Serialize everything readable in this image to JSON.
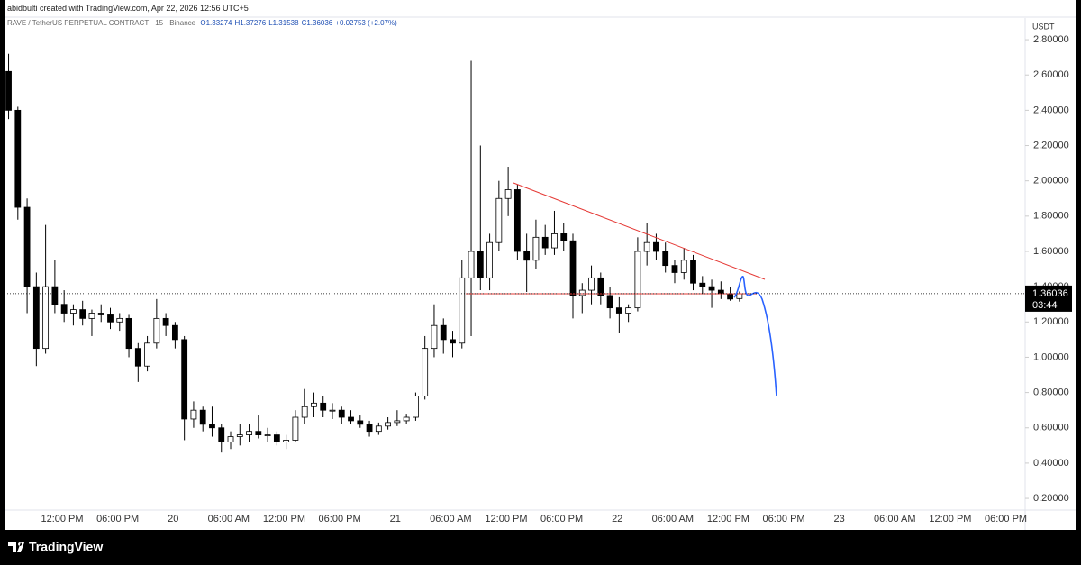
{
  "header": {
    "caption": "abidbulti created with TradingView.com, Apr 22, 2026 12:56 UTC+5",
    "brand": "TradingView"
  },
  "chart_data": {
    "type": "candlestick",
    "title": "RAVE / TetherUS PERPETUAL CONTRACT · 15 · Binance",
    "ohlc_labels": [
      {
        "value": 1.33274,
        "label": "O1.33274"
      },
      {
        "value": 1.37276,
        "label": "H1.37276"
      },
      {
        "value": 1.31538,
        "label": "L1.31538"
      },
      {
        "value": 1.36036,
        "label": "C1.36036"
      }
    ],
    "change_label": {
      "value": 0.02753,
      "label": "+0.02753 (+2.07%)"
    },
    "y_unit": "USDT",
    "open": [
      2.62,
      2.4,
      1.85,
      1.4,
      1.05,
      1.4,
      1.3,
      1.25,
      1.27,
      1.22,
      1.25,
      1.24,
      1.2,
      1.22,
      1.05,
      0.95,
      1.08,
      1.22,
      1.18,
      1.1,
      0.65,
      0.7,
      0.62,
      0.6,
      0.52,
      0.55,
      0.56,
      0.58,
      0.56,
      0.56,
      0.52,
      0.53,
      0.66,
      0.72,
      0.74,
      0.7,
      0.7,
      0.66,
      0.64,
      0.62,
      0.58,
      0.61,
      0.63,
      0.64,
      0.66,
      0.78,
      1.05,
      1.18,
      1.1,
      1.08,
      1.45,
      1.6,
      1.45,
      1.65,
      1.9,
      1.95,
      1.6,
      1.55,
      1.68,
      1.62,
      1.7,
      1.66,
      1.35,
      1.38,
      1.45,
      1.35,
      1.28,
      1.25,
      1.28,
      1.6,
      1.65,
      1.6,
      1.52,
      1.48,
      1.55,
      1.42,
      1.4,
      1.38,
      1.36,
      1.33274
    ],
    "high": [
      2.72,
      2.42,
      1.9,
      1.48,
      1.75,
      1.55,
      1.38,
      1.3,
      1.32,
      1.27,
      1.3,
      1.28,
      1.25,
      1.24,
      1.08,
      1.12,
      1.33,
      1.25,
      1.2,
      1.12,
      0.75,
      0.72,
      0.72,
      0.62,
      0.58,
      0.62,
      0.62,
      0.67,
      0.6,
      0.58,
      0.56,
      0.7,
      0.82,
      0.8,
      0.78,
      0.74,
      0.72,
      0.7,
      0.67,
      0.64,
      0.63,
      0.66,
      0.7,
      0.68,
      0.8,
      1.12,
      1.3,
      1.22,
      1.15,
      1.55,
      2.68,
      2.2,
      1.7,
      2.0,
      2.08,
      1.98,
      1.7,
      1.78,
      1.75,
      1.83,
      1.76,
      1.7,
      1.42,
      1.52,
      1.48,
      1.4,
      1.34,
      1.3,
      1.68,
      1.76,
      1.7,
      1.65,
      1.55,
      1.62,
      1.58,
      1.46,
      1.44,
      1.43,
      1.4,
      1.37276
    ],
    "low": [
      2.35,
      1.78,
      1.25,
      0.95,
      1.02,
      1.25,
      1.2,
      1.18,
      1.18,
      1.12,
      1.2,
      1.16,
      1.15,
      1.0,
      0.86,
      0.92,
      1.05,
      1.12,
      1.05,
      0.53,
      0.6,
      0.58,
      0.55,
      0.46,
      0.48,
      0.5,
      0.52,
      0.54,
      0.52,
      0.5,
      0.48,
      0.52,
      0.62,
      0.66,
      0.66,
      0.65,
      0.62,
      0.62,
      0.6,
      0.55,
      0.56,
      0.59,
      0.61,
      0.62,
      0.64,
      0.76,
      1.0,
      1.02,
      1.0,
      1.05,
      1.12,
      1.38,
      1.38,
      1.6,
      1.8,
      1.55,
      1.37,
      1.5,
      1.58,
      1.58,
      1.6,
      1.22,
      1.25,
      1.3,
      1.3,
      1.22,
      1.14,
      1.2,
      1.26,
      1.52,
      1.55,
      1.48,
      1.42,
      1.44,
      1.38,
      1.36,
      1.28,
      1.33,
      1.32,
      1.31538
    ],
    "close": [
      2.4,
      1.85,
      1.4,
      1.05,
      1.4,
      1.3,
      1.25,
      1.27,
      1.22,
      1.25,
      1.24,
      1.2,
      1.22,
      1.05,
      0.95,
      1.08,
      1.22,
      1.18,
      1.1,
      0.65,
      0.7,
      0.62,
      0.6,
      0.52,
      0.55,
      0.56,
      0.58,
      0.56,
      0.56,
      0.52,
      0.53,
      0.66,
      0.72,
      0.74,
      0.7,
      0.7,
      0.66,
      0.64,
      0.62,
      0.58,
      0.61,
      0.63,
      0.64,
      0.66,
      0.78,
      1.05,
      1.18,
      1.1,
      1.08,
      1.45,
      1.6,
      1.45,
      1.65,
      1.9,
      1.95,
      1.6,
      1.55,
      1.68,
      1.62,
      1.7,
      1.66,
      1.35,
      1.38,
      1.45,
      1.35,
      1.28,
      1.25,
      1.28,
      1.6,
      1.65,
      1.6,
      1.52,
      1.48,
      1.55,
      1.42,
      1.4,
      1.38,
      1.36,
      1.33,
      1.36036
    ],
    "up_color": "#ffffff",
    "down_color": "#000000",
    "ylim": [
      0.139,
      2.831
    ],
    "yticks": [
      {
        "value": 2.8,
        "label": "2.80000"
      },
      {
        "value": 2.6,
        "label": "2.60000"
      },
      {
        "value": 2.4,
        "label": "2.40000"
      },
      {
        "value": 2.2,
        "label": "2.20000"
      },
      {
        "value": 2.0,
        "label": "2.00000"
      },
      {
        "value": 1.8,
        "label": "1.80000"
      },
      {
        "value": 1.6,
        "label": "1.60000"
      },
      {
        "value": 1.4,
        "label": "1.40000"
      },
      {
        "value": 1.2,
        "label": "1.20000"
      },
      {
        "value": 1.0,
        "label": "1.00000"
      },
      {
        "value": 0.8,
        "label": "0.80000"
      },
      {
        "value": 0.6,
        "label": "0.60000"
      },
      {
        "value": 0.4,
        "label": "0.40000"
      },
      {
        "value": 0.2,
        "label": "0.20000"
      }
    ],
    "xtick_labels": [
      "12:00 PM",
      "06:00 PM",
      "20",
      "06:00 AM",
      "12:00 PM",
      "06:00 PM",
      "21",
      "06:00 AM",
      "12:00 PM",
      "06:00 PM",
      "22",
      "06:00 AM",
      "12:00 PM",
      "06:00 PM",
      "23",
      "06:00 AM",
      "12:00 PM",
      "06:00 PM"
    ],
    "last_price": {
      "value": 1.36036,
      "label": "1.36036"
    },
    "countdown": "03:44",
    "grid": false
  }
}
